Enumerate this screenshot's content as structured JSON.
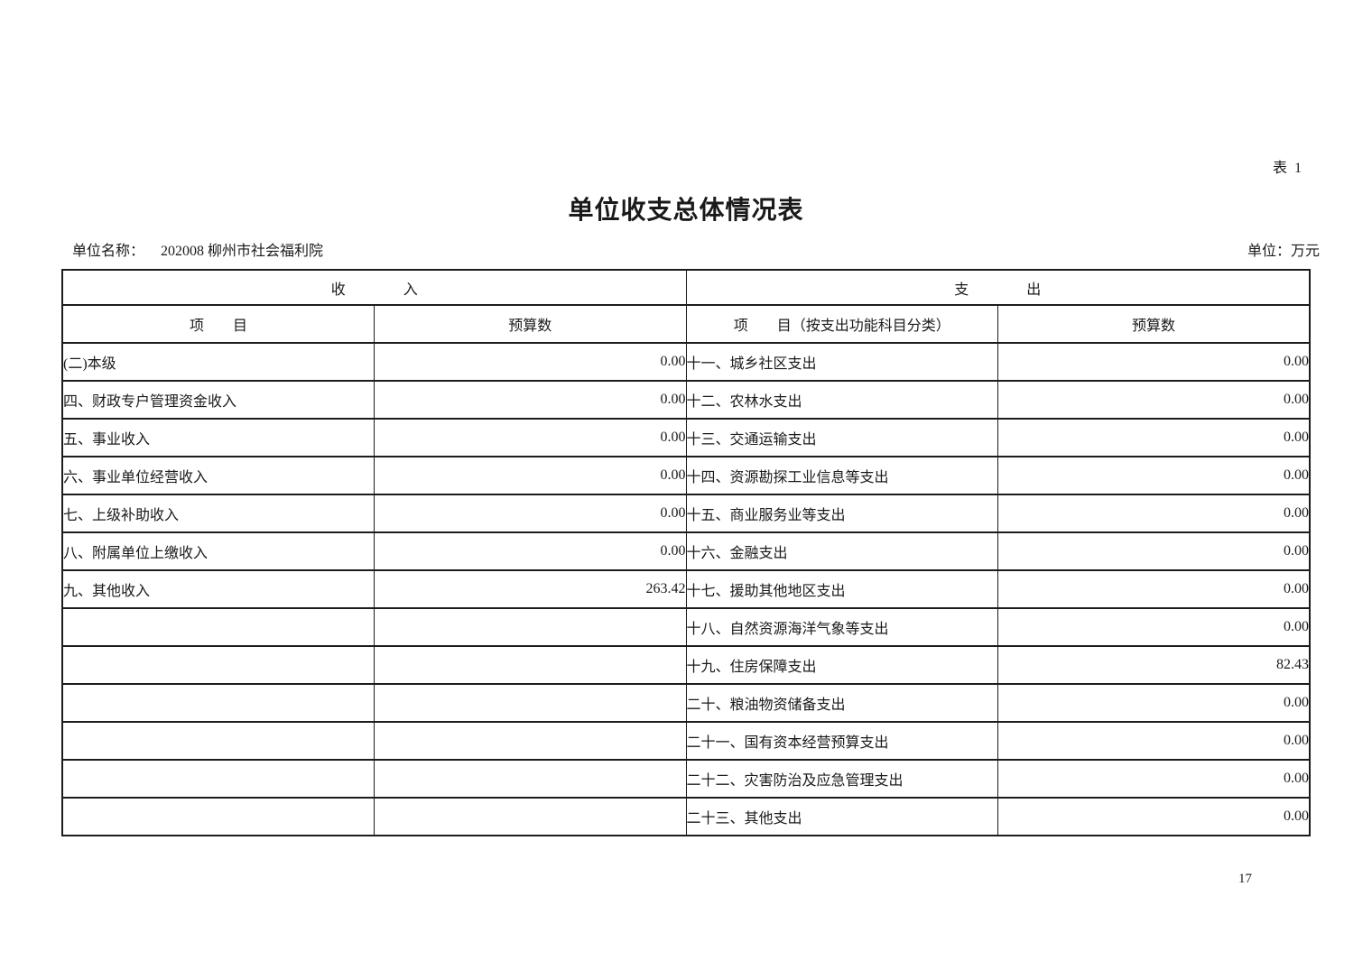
{
  "page": {
    "table_label": "表 1",
    "title": "单位收支总体情况表",
    "unit_name_label": "单位名称：",
    "unit_name_value": "202008 柳州市社会福利院",
    "unit_measure": "单位：万元",
    "page_number": "17"
  },
  "table": {
    "income_section": "收　　　　入",
    "expense_section": "支　　　　出",
    "columns": {
      "income_item": "项　　目",
      "income_budget": "预算数",
      "expense_item": "项　　目（按支出功能科目分类）",
      "expense_budget": "预算数"
    },
    "rows": [
      {
        "income_item": "(二)本级",
        "income_value": "0.00",
        "expense_item": "十一、城乡社区支出",
        "expense_value": "0.00"
      },
      {
        "income_item": "四、财政专户管理资金收入",
        "income_value": "0.00",
        "expense_item": "十二、农林水支出",
        "expense_value": "0.00"
      },
      {
        "income_item": "五、事业收入",
        "income_value": "0.00",
        "expense_item": "十三、交通运输支出",
        "expense_value": "0.00"
      },
      {
        "income_item": "六、事业单位经营收入",
        "income_value": "0.00",
        "expense_item": "十四、资源勘探工业信息等支出",
        "expense_value": "0.00"
      },
      {
        "income_item": "七、上级补助收入",
        "income_value": "0.00",
        "expense_item": "十五、商业服务业等支出",
        "expense_value": "0.00"
      },
      {
        "income_item": "八、附属单位上缴收入",
        "income_value": "0.00",
        "expense_item": "十六、金融支出",
        "expense_value": "0.00"
      },
      {
        "income_item": "九、其他收入",
        "income_value": "263.42",
        "expense_item": "十七、援助其他地区支出",
        "expense_value": "0.00"
      },
      {
        "income_item": "",
        "income_value": "",
        "expense_item": "十八、自然资源海洋气象等支出",
        "expense_value": "0.00"
      },
      {
        "income_item": "",
        "income_value": "",
        "expense_item": "十九、住房保障支出",
        "expense_value": "82.43"
      },
      {
        "income_item": "",
        "income_value": "",
        "expense_item": "二十、粮油物资储备支出",
        "expense_value": "0.00"
      },
      {
        "income_item": "",
        "income_value": "",
        "expense_item": "二十一、国有资本经营预算支出",
        "expense_value": "0.00"
      },
      {
        "income_item": "",
        "income_value": "",
        "expense_item": "二十二、灾害防治及应急管理支出",
        "expense_value": "0.00"
      },
      {
        "income_item": "",
        "income_value": "",
        "expense_item": "二十三、其他支出",
        "expense_value": "0.00"
      }
    ]
  }
}
